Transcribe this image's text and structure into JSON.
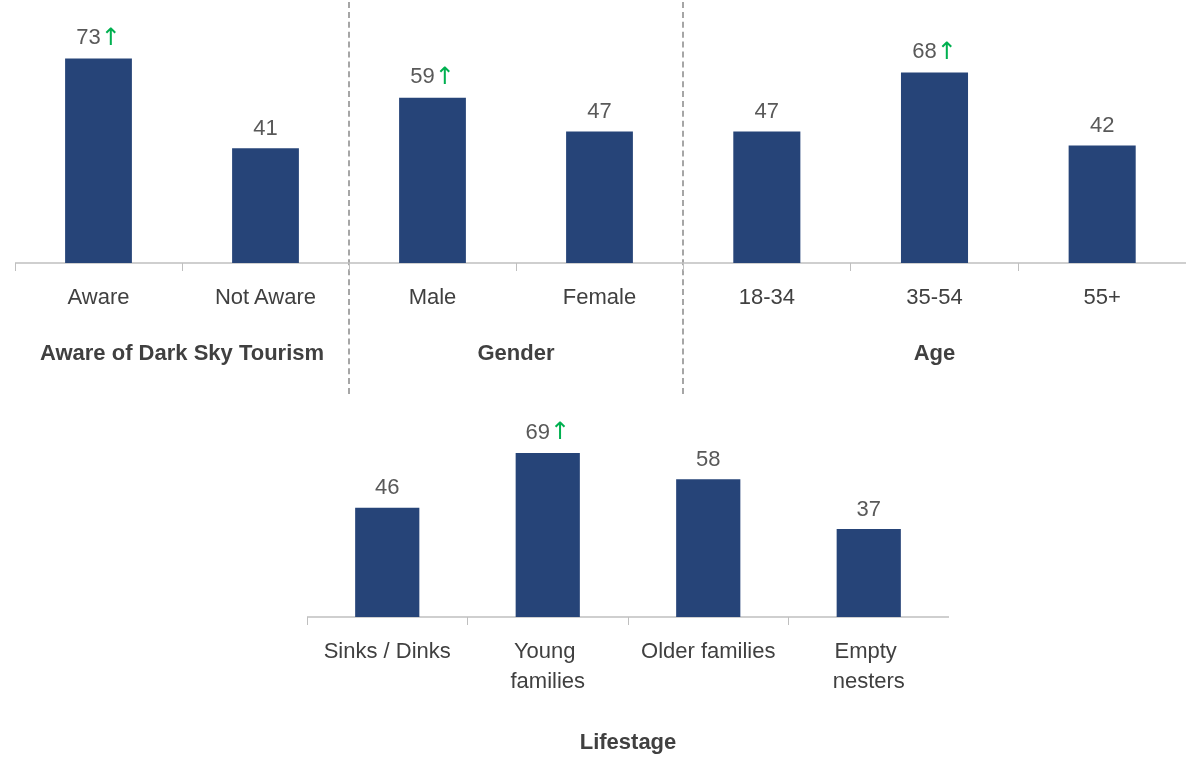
{
  "chart_data": [
    {
      "type": "bar",
      "categories": [
        "Aware",
        "Not Aware"
      ],
      "values": [
        73,
        41
      ],
      "value_labels": [
        "73↑",
        "41"
      ],
      "color": "#264478",
      "xlabel": "Aware of Dark Sky Tourism",
      "tick_labels": "x"
    },
    {
      "type": "bar",
      "categories": [
        "Male",
        "Female"
      ],
      "values": [
        59,
        47
      ],
      "value_labels": [
        "59↑",
        "47"
      ],
      "color": "#264478",
      "xlabel": "Gender",
      "tick_labels": "x"
    },
    {
      "type": "bar",
      "categories": [
        "18-34",
        "35-54",
        "55+"
      ],
      "values": [
        47,
        68,
        42
      ],
      "value_labels": [
        "47",
        "68↑",
        "42"
      ],
      "color": "#264478",
      "xlabel": "Age",
      "tick_labels": "x"
    },
    {
      "type": "bar",
      "categories": [
        "Sinks / Dinks",
        "Young families",
        "Older families",
        "Empty nesters"
      ],
      "values": [
        46,
        69,
        58,
        37
      ],
      "value_labels": [
        "46",
        "69↑",
        "58",
        "37"
      ],
      "color": "#264478",
      "xlabel": "Lifestage",
      "tick_labels": "x"
    }
  ]
}
